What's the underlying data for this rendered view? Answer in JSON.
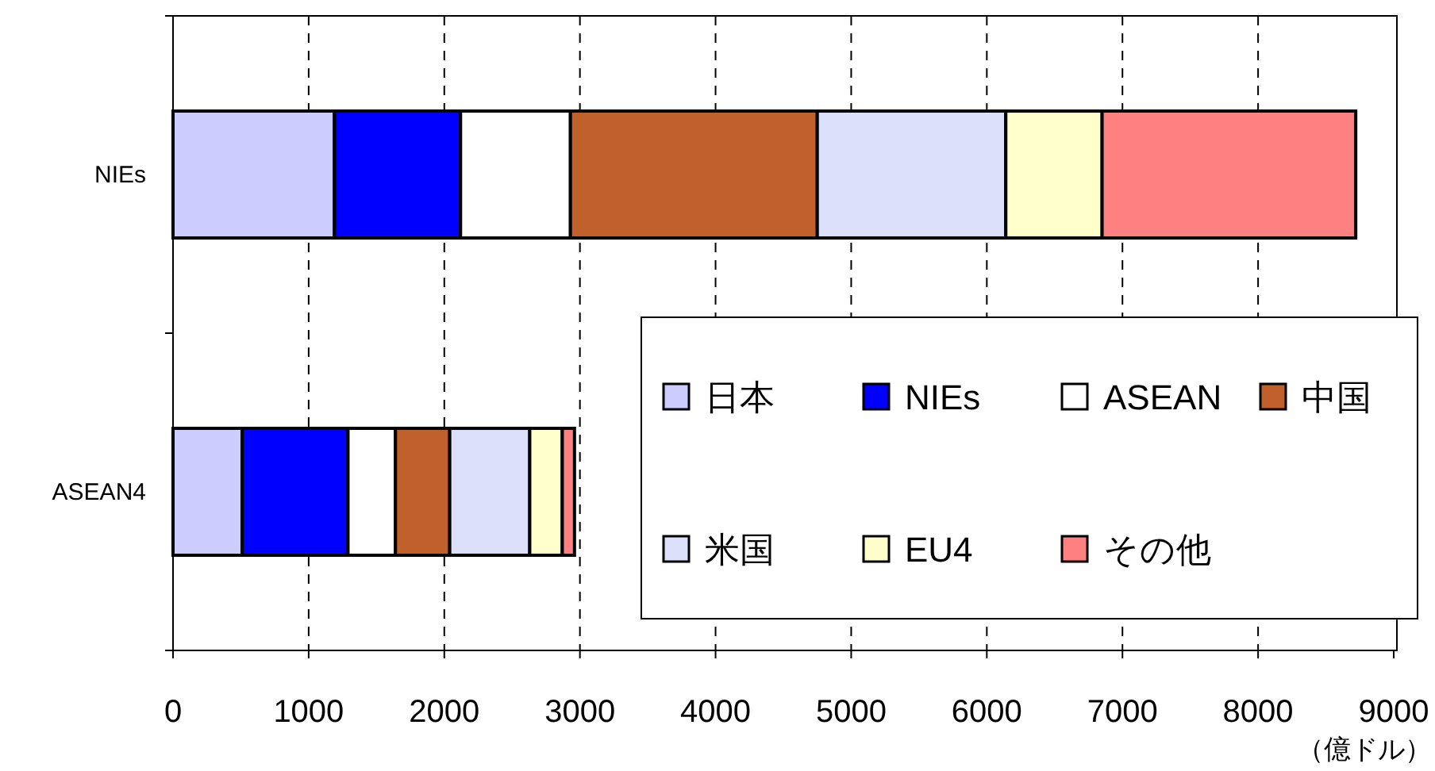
{
  "chart_data": {
    "type": "bar",
    "orientation": "horizontal",
    "stacked": true,
    "categories": [
      "NIEs",
      "ASEAN4"
    ],
    "xlabel": "（億ドル）",
    "xlim": [
      0,
      9000
    ],
    "xticks": [
      0,
      1000,
      2000,
      3000,
      4000,
      5000,
      6000,
      7000,
      8000,
      9000
    ],
    "grid": "x",
    "legend": "bottom right",
    "series": [
      {
        "name": "日本",
        "color": "#ccccff",
        "values": [
          1190,
          510
        ]
      },
      {
        "name": "NIEs",
        "color": "#0000ff",
        "values": [
          930,
          780
        ]
      },
      {
        "name": "ASEAN",
        "color": "#ffffff",
        "values": [
          810,
          350
        ]
      },
      {
        "name": "中国",
        "color": "#c0602a",
        "values": [
          1820,
          400
        ]
      },
      {
        "name": "米国",
        "color": "#dde0fa",
        "values": [
          1390,
          590
        ]
      },
      {
        "name": "EU4",
        "color": "#ffffcc",
        "values": [
          710,
          240
        ]
      },
      {
        "name": "その他",
        "color": "#ff8080",
        "values": [
          1870,
          90
        ]
      }
    ]
  }
}
